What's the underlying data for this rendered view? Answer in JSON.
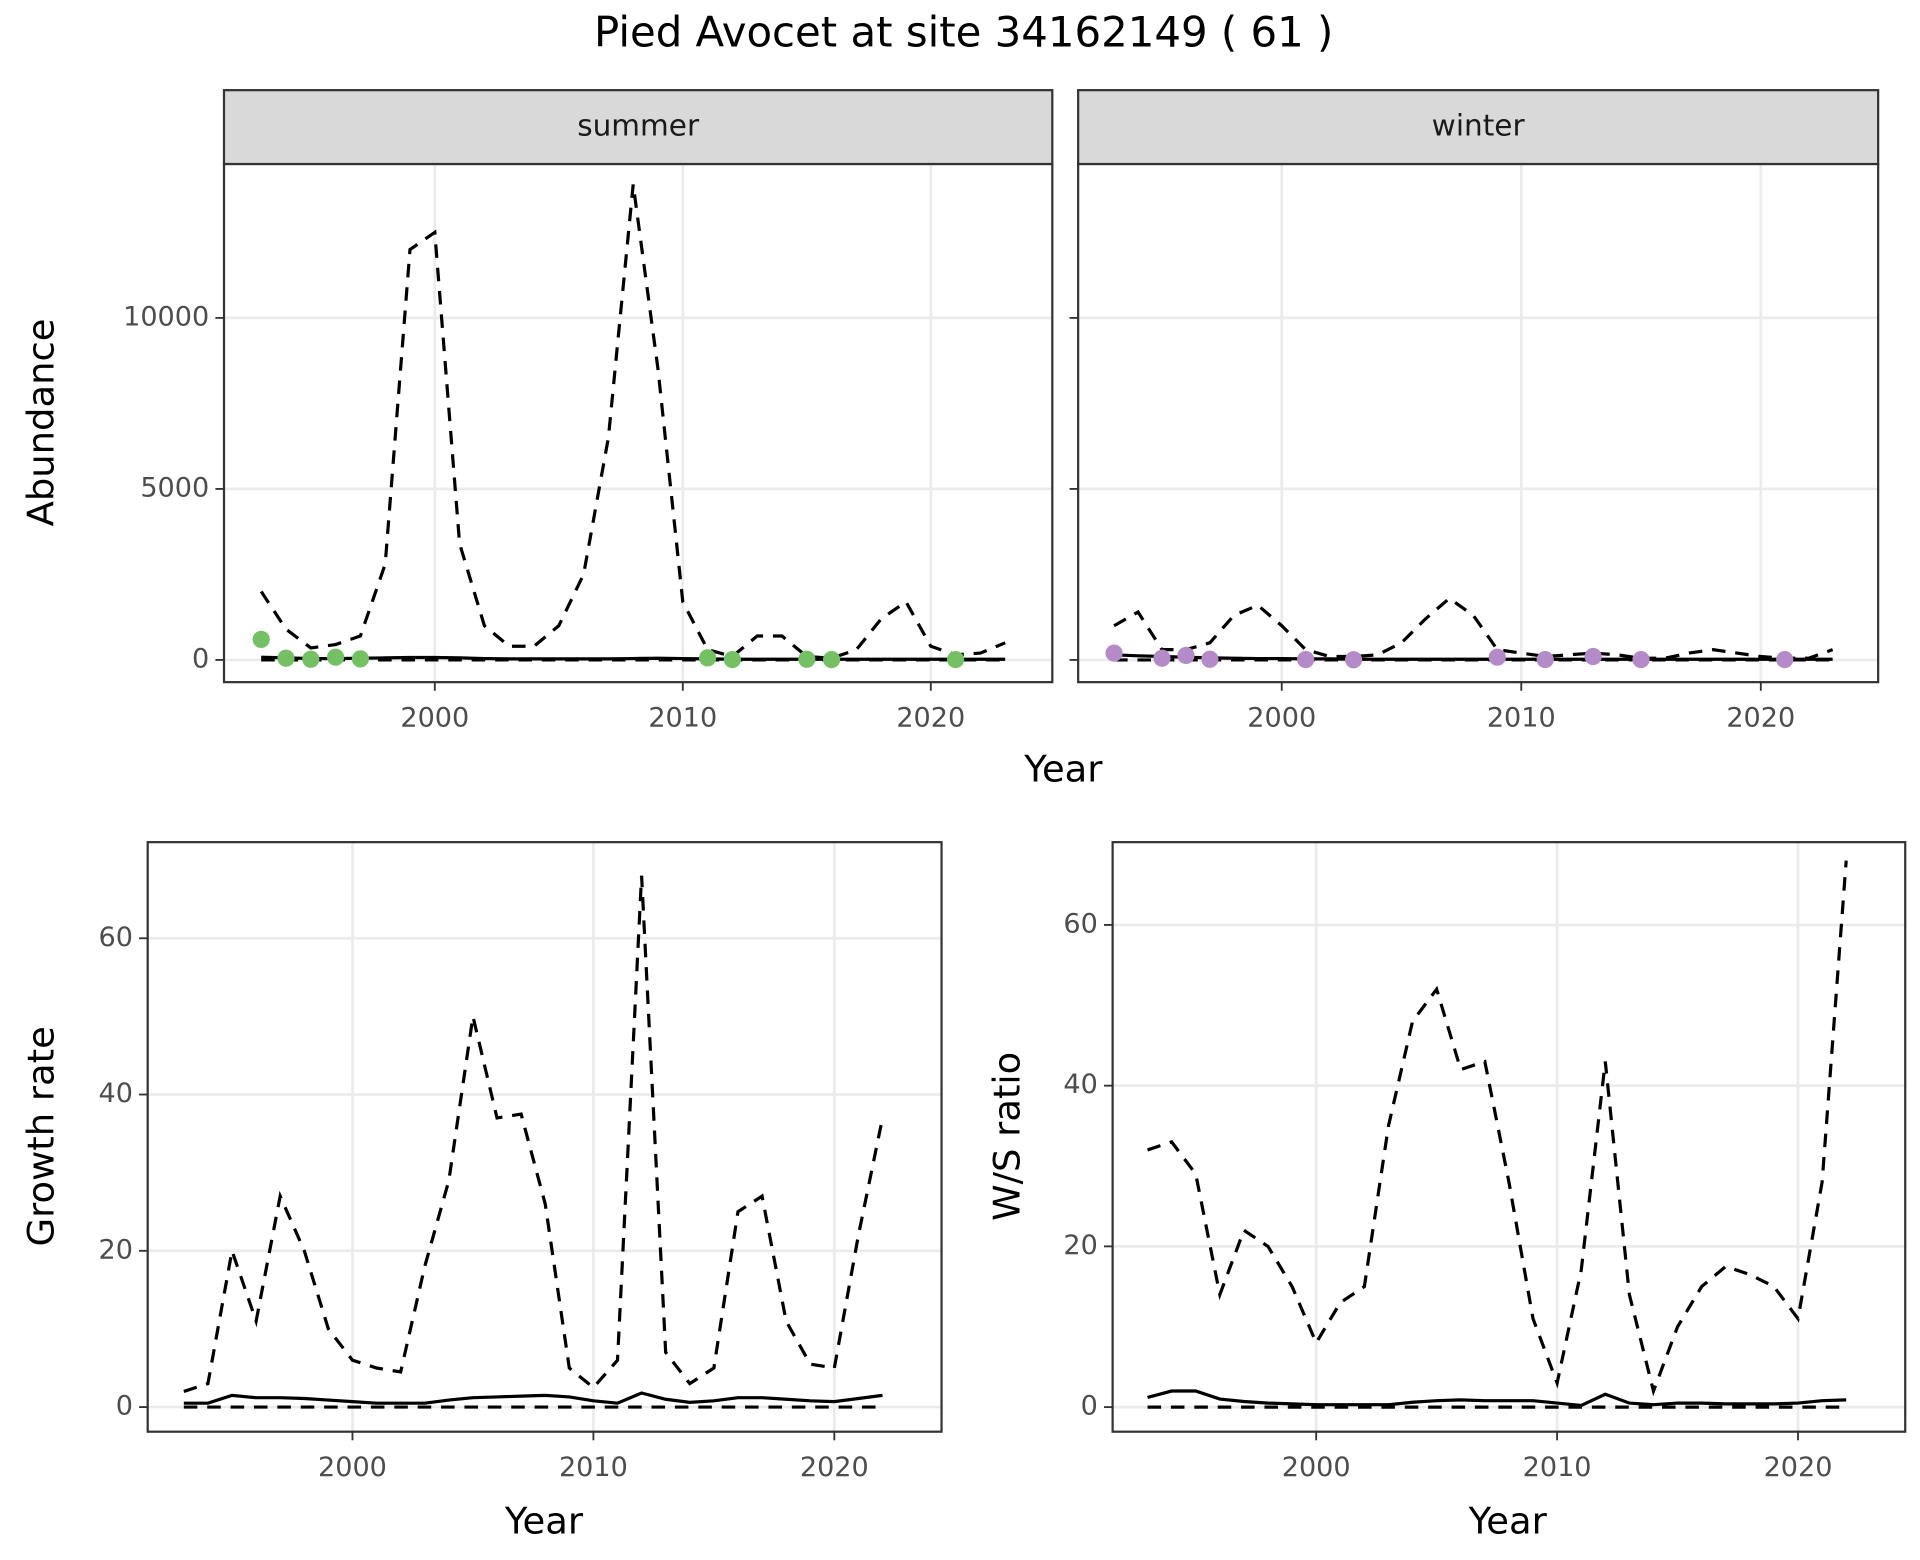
{
  "title": "Pied Avocet at site 34162149 ( 61 )",
  "chart_data": [
    {
      "type": "line",
      "strip": "summer",
      "ylabel": "Abundance",
      "xlabel": "Year",
      "grid": true,
      "x": [
        1993,
        1994,
        1995,
        1996,
        1997,
        1998,
        1999,
        2000,
        2001,
        2002,
        2003,
        2004,
        2005,
        2006,
        2007,
        2008,
        2009,
        2010,
        2011,
        2012,
        2013,
        2014,
        2015,
        2016,
        2017,
        2018,
        2019,
        2020,
        2021,
        2022,
        2023
      ],
      "xlim": [
        1991.5,
        2024.9
      ],
      "xticks": [
        2000,
        2010,
        2020
      ],
      "ylim": [
        -650,
        14500
      ],
      "yticks": [
        0,
        5000,
        10000
      ],
      "series": [
        {
          "style": "dashed",
          "color": "#000000",
          "values": [
            2000,
            900,
            350,
            450,
            700,
            2800,
            12000,
            12500,
            3400,
            1000,
            400,
            400,
            1000,
            2500,
            6500,
            13900,
            8500,
            1700,
            300,
            100,
            700,
            700,
            100,
            50,
            300,
            1200,
            1700,
            400,
            150,
            200,
            500
          ]
        },
        {
          "style": "dashed",
          "color": "#000000",
          "values": [
            0,
            0,
            0,
            0,
            0,
            0,
            0,
            0,
            0,
            0,
            0,
            0,
            0,
            0,
            0,
            0,
            0,
            0,
            0,
            0,
            0,
            0,
            0,
            0,
            0,
            0,
            0,
            0,
            0,
            0,
            0
          ]
        },
        {
          "style": "solid",
          "color": "#000000",
          "values": [
            80,
            60,
            40,
            40,
            50,
            60,
            70,
            70,
            60,
            40,
            30,
            30,
            30,
            30,
            30,
            40,
            50,
            40,
            30,
            20,
            20,
            20,
            20,
            20,
            20,
            20,
            20,
            20,
            20,
            20,
            20
          ]
        },
        {
          "style": "points",
          "color": "#74c163",
          "values": [
            600,
            50,
            20,
            80,
            30,
            null,
            null,
            null,
            null,
            null,
            null,
            null,
            null,
            null,
            null,
            null,
            null,
            null,
            60,
            10,
            null,
            null,
            20,
            10,
            null,
            null,
            null,
            null,
            10,
            null,
            null
          ]
        }
      ]
    },
    {
      "type": "line",
      "strip": "winter",
      "grid": true,
      "x": [
        1993,
        1994,
        1995,
        1996,
        1997,
        1998,
        1999,
        2000,
        2001,
        2002,
        2003,
        2004,
        2005,
        2006,
        2007,
        2008,
        2009,
        2010,
        2011,
        2012,
        2013,
        2014,
        2015,
        2016,
        2017,
        2018,
        2019,
        2020,
        2021,
        2022,
        2023
      ],
      "xlim": [
        1991.5,
        2024.9
      ],
      "xticks": [
        2000,
        2010,
        2020
      ],
      "ylim": [
        -650,
        14500
      ],
      "yticks": [
        0,
        5000,
        10000
      ],
      "series": [
        {
          "style": "dashed",
          "color": "#000000",
          "values": [
            1000,
            1400,
            300,
            300,
            500,
            1300,
            1600,
            1000,
            300,
            100,
            100,
            150,
            500,
            1200,
            1800,
            1300,
            300,
            200,
            100,
            150,
            200,
            150,
            50,
            50,
            200,
            300,
            200,
            100,
            50,
            50,
            300
          ]
        },
        {
          "style": "dashed",
          "color": "#000000",
          "values": [
            0,
            0,
            0,
            0,
            0,
            0,
            0,
            0,
            0,
            0,
            0,
            0,
            0,
            0,
            0,
            0,
            0,
            0,
            0,
            0,
            0,
            0,
            0,
            0,
            0,
            0,
            0,
            0,
            0,
            0,
            0
          ]
        },
        {
          "style": "solid",
          "color": "#000000",
          "values": [
            150,
            120,
            100,
            80,
            60,
            50,
            40,
            40,
            30,
            30,
            20,
            20,
            20,
            20,
            20,
            20,
            20,
            20,
            20,
            20,
            20,
            20,
            20,
            20,
            20,
            20,
            20,
            20,
            20,
            20,
            20
          ]
        },
        {
          "style": "points",
          "color": "#b48bc8",
          "values": [
            200,
            null,
            50,
            130,
            20,
            null,
            null,
            null,
            10,
            null,
            5,
            null,
            null,
            null,
            null,
            null,
            80,
            null,
            10,
            null,
            100,
            null,
            10,
            null,
            null,
            null,
            null,
            null,
            10,
            null,
            null
          ]
        }
      ]
    },
    {
      "type": "line",
      "ylabel": "Growth rate",
      "xlabel": "Year",
      "grid": true,
      "x": [
        1993,
        1994,
        1995,
        1996,
        1997,
        1998,
        1999,
        2000,
        2001,
        2002,
        2003,
        2004,
        2005,
        2006,
        2007,
        2008,
        2009,
        2010,
        2011,
        2012,
        2013,
        2014,
        2015,
        2016,
        2017,
        2018,
        2019,
        2020,
        2021,
        2022
      ],
      "xlim": [
        1991.5,
        2024.45
      ],
      "xticks": [
        2000,
        2010,
        2020
      ],
      "ylim": [
        -3.15,
        72.3
      ],
      "yticks": [
        0,
        20,
        40,
        60
      ],
      "series": [
        {
          "style": "dashed",
          "color": "#000000",
          "values": [
            2,
            3,
            20,
            11,
            27,
            20,
            10,
            6,
            5,
            4.5,
            18,
            29,
            50,
            37,
            37.5,
            26,
            5,
            2.5,
            6,
            68,
            7,
            3,
            5,
            25,
            27,
            11,
            5.5,
            5,
            22,
            37
          ]
        },
        {
          "style": "dashed",
          "color": "#000000",
          "values": [
            0,
            0,
            0,
            0,
            0,
            0,
            0,
            0,
            0,
            0,
            0,
            0,
            0,
            0,
            0,
            0,
            0,
            0,
            0,
            0,
            0,
            0,
            0,
            0,
            0,
            0,
            0,
            0,
            0,
            0
          ]
        },
        {
          "style": "solid",
          "color": "#000000",
          "values": [
            0.5,
            0.5,
            1.5,
            1.2,
            1.2,
            1.1,
            0.9,
            0.7,
            0.5,
            0.5,
            0.5,
            0.9,
            1.2,
            1.3,
            1.4,
            1.5,
            1.3,
            0.8,
            0.5,
            1.8,
            1.0,
            0.6,
            0.8,
            1.2,
            1.2,
            1.0,
            0.8,
            0.7,
            1.1,
            1.5
          ]
        }
      ]
    },
    {
      "type": "line",
      "ylabel": "W/S ratio",
      "xlabel": "Year",
      "grid": true,
      "x": [
        1993,
        1994,
        1995,
        1996,
        1997,
        1998,
        1999,
        2000,
        2001,
        2002,
        2003,
        2004,
        2005,
        2006,
        2007,
        2008,
        2009,
        2010,
        2011,
        2012,
        2013,
        2014,
        2015,
        2016,
        2017,
        2018,
        2019,
        2020,
        2021,
        2022
      ],
      "xlim": [
        1991.55,
        2024.45
      ],
      "xticks": [
        2000,
        2010,
        2020
      ],
      "ylim": [
        -3.06,
        70.3
      ],
      "yticks": [
        0,
        20,
        40,
        60
      ],
      "series": [
        {
          "style": "dashed",
          "color": "#000000",
          "values": [
            32,
            33,
            29,
            14,
            22,
            20,
            15,
            8,
            13,
            15,
            35,
            48,
            52,
            42,
            43,
            28,
            11,
            3,
            17,
            43,
            14,
            2,
            10,
            15,
            17.5,
            16.5,
            15,
            11,
            28,
            68
          ]
        },
        {
          "style": "dashed",
          "color": "#000000",
          "values": [
            0,
            0,
            0,
            0,
            0,
            0,
            0,
            0,
            0,
            0,
            0,
            0,
            0,
            0,
            0,
            0,
            0,
            0,
            0,
            0,
            0,
            0,
            0,
            0,
            0,
            0,
            0,
            0,
            0,
            0
          ]
        },
        {
          "style": "solid",
          "color": "#000000",
          "values": [
            1.2,
            2,
            2,
            1,
            0.7,
            0.5,
            0.4,
            0.3,
            0.3,
            0.3,
            0.3,
            0.6,
            0.8,
            0.9,
            0.8,
            0.8,
            0.8,
            0.5,
            0.2,
            1.6,
            0.5,
            0.3,
            0.5,
            0.5,
            0.4,
            0.4,
            0.4,
            0.5,
            0.8,
            0.9
          ]
        }
      ]
    }
  ]
}
